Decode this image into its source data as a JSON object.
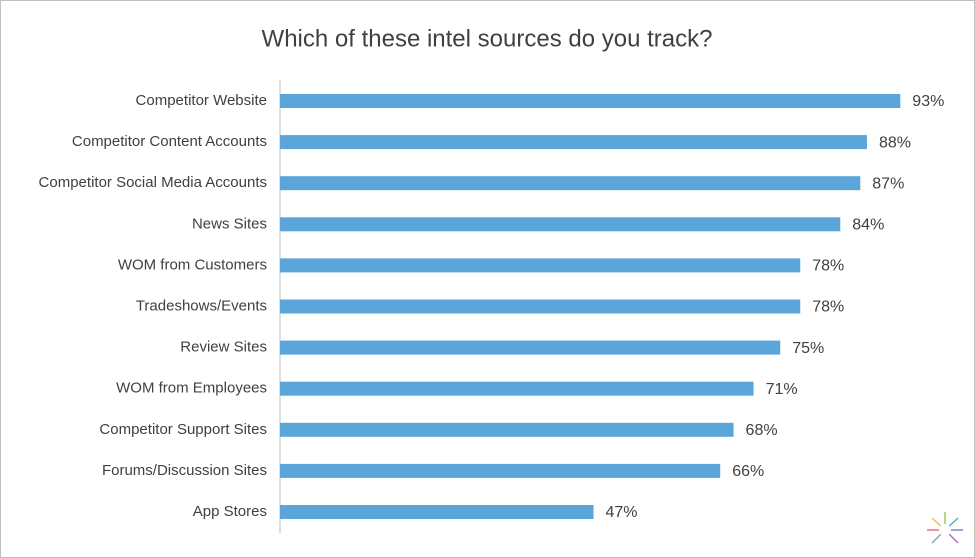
{
  "chart_data": {
    "type": "bar",
    "orientation": "horizontal",
    "title": "Which of these intel sources do you track?",
    "categories": [
      "Competitor Website",
      "Competitor Content Accounts",
      "Competitor Social Media Accounts",
      "News Sites",
      "WOM from Customers",
      "Tradeshows/Events",
      "Review Sites",
      "WOM from Employees",
      "Competitor Support Sites",
      "Forums/Discussion Sites",
      "App Stores"
    ],
    "values": [
      93,
      88,
      87,
      84,
      78,
      78,
      75,
      71,
      68,
      66,
      47
    ],
    "value_labels": [
      "93%",
      "88%",
      "87%",
      "84%",
      "78%",
      "78%",
      "75%",
      "71%",
      "68%",
      "66%",
      "47%"
    ],
    "color": "#5aa5da"
  }
}
